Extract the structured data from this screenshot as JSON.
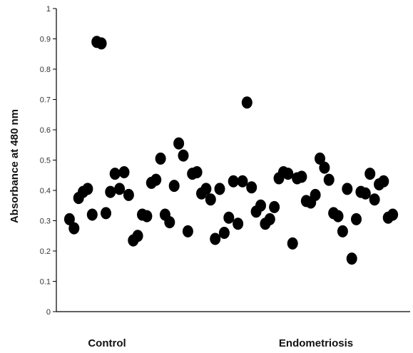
{
  "chart_data": {
    "type": "scatter",
    "ylabel": "Absorbance at 480 nm",
    "ylim": [
      0,
      1
    ],
    "yticks": [
      "0",
      "0.1",
      "0.2",
      "0.3",
      "0.4",
      "0.5",
      "0.6",
      "0.7",
      "0.8",
      "0.9",
      "1"
    ],
    "categories": [
      "Control",
      "Endometriosis"
    ],
    "grid": false,
    "legend": "none",
    "marker_color": "#000000",
    "series": [
      {
        "category": "Control",
        "x": [
          1,
          2,
          3,
          4,
          5,
          6,
          7,
          8,
          9,
          10,
          11,
          12,
          13,
          14,
          15,
          16,
          17,
          18,
          19,
          20,
          21,
          22,
          23,
          24,
          25,
          26,
          27,
          28,
          29,
          30,
          31,
          32,
          33,
          34,
          35,
          36,
          37,
          38,
          39
        ],
        "y": [
          0.305,
          0.275,
          0.375,
          0.395,
          0.405,
          0.32,
          0.89,
          0.885,
          0.325,
          0.395,
          0.455,
          0.405,
          0.46,
          0.385,
          0.235,
          0.25,
          0.32,
          0.315,
          0.425,
          0.435,
          0.505,
          0.32,
          0.295,
          0.415,
          0.555,
          0.515,
          0.265,
          0.455,
          0.46,
          0.39,
          0.405,
          0.37,
          0.24,
          0.405,
          0.26,
          0.31,
          0.43,
          0.29,
          0.43
        ]
      },
      {
        "category": "Endometriosis",
        "x": [
          40,
          41,
          42,
          43,
          44,
          45,
          46,
          47,
          48,
          49,
          50,
          51,
          52,
          53,
          54,
          55,
          56,
          57,
          58,
          59,
          60,
          61,
          62,
          63,
          64,
          65,
          66,
          67,
          68,
          69,
          70,
          71,
          72
        ],
        "y": [
          0.69,
          0.41,
          0.33,
          0.35,
          0.29,
          0.305,
          0.345,
          0.44,
          0.46,
          0.455,
          0.225,
          0.44,
          0.445,
          0.365,
          0.36,
          0.385,
          0.505,
          0.475,
          0.435,
          0.325,
          0.315,
          0.265,
          0.405,
          0.175,
          0.305,
          0.395,
          0.39,
          0.455,
          0.37,
          0.42,
          0.43,
          0.31,
          0.32
        ]
      }
    ]
  }
}
